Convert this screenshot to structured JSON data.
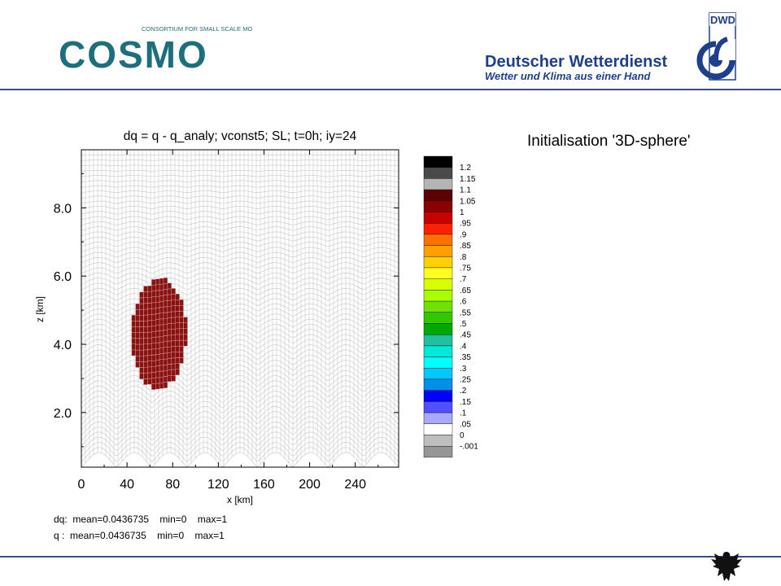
{
  "header": {
    "cosmo_tagline": "CONSORTIUM FOR SMALL SCALE MODELING",
    "cosmo_word": "COSMO",
    "dwd_badge": "DWD",
    "dwd_name": "Deutscher Wetterdienst",
    "dwd_slogan": "Wetter und Klima aus einer Hand"
  },
  "subtitle": "Initialisation '3D-sphere'",
  "colors": {
    "rule": "#3b4a8c",
    "cosmo": "#1e6f7c",
    "dwd": "#1e3f8c",
    "tracer": "#8b1010"
  },
  "chart_data": {
    "type": "heatmap",
    "title": "dq = q - q_analy; vconst5; SL; t=0h; iy=24",
    "xlabel": "x [km]",
    "ylabel": "z [km]",
    "xlim": [
      0,
      278
    ],
    "ylim": [
      0.4,
      9.7
    ],
    "x_ticks": [
      "0",
      "40",
      "80",
      "120",
      "160",
      "200",
      "240"
    ],
    "y_ticks": [
      "2.0",
      "4.0",
      "6.0",
      "8.0"
    ],
    "grid": true,
    "terrain_bumps": 9,
    "colorbar": {
      "labels": [
        "1.2",
        "1.15",
        "1.1",
        "1.05",
        "1",
        ".95",
        ".9",
        ".85",
        ".8",
        ".75",
        ".7",
        ".65",
        ".6",
        ".55",
        ".5",
        ".45",
        ".4",
        ".35",
        ".3",
        ".25",
        ".2",
        ".15",
        ".1",
        ".05",
        "0",
        "-.001"
      ],
      "colors": [
        "#000000",
        "#4a4a4a",
        "#b4b4b4",
        "#5c0000",
        "#8c0000",
        "#c80000",
        "#ff2000",
        "#ff7000",
        "#ffa000",
        "#ffd000",
        "#ffff20",
        "#d8ff00",
        "#a8ff00",
        "#70e000",
        "#30c800",
        "#00a800",
        "#20c0a0",
        "#00e8d8",
        "#00ffff",
        "#00c8ff",
        "#0090e8",
        "#0000ff",
        "#5050ff",
        "#a8a8ff",
        "#ffffff",
        "#bebebe",
        "#969696"
      ]
    },
    "anomaly": {
      "label": "sphere",
      "x_range_km": [
        44,
        92
      ],
      "z_range_km": [
        2.7,
        5.9
      ],
      "value": 1
    },
    "stats": [
      "dq:  mean=0.0436735    min=0    max=1",
      "q :  mean=0.0436735    min=0    max=1"
    ]
  }
}
